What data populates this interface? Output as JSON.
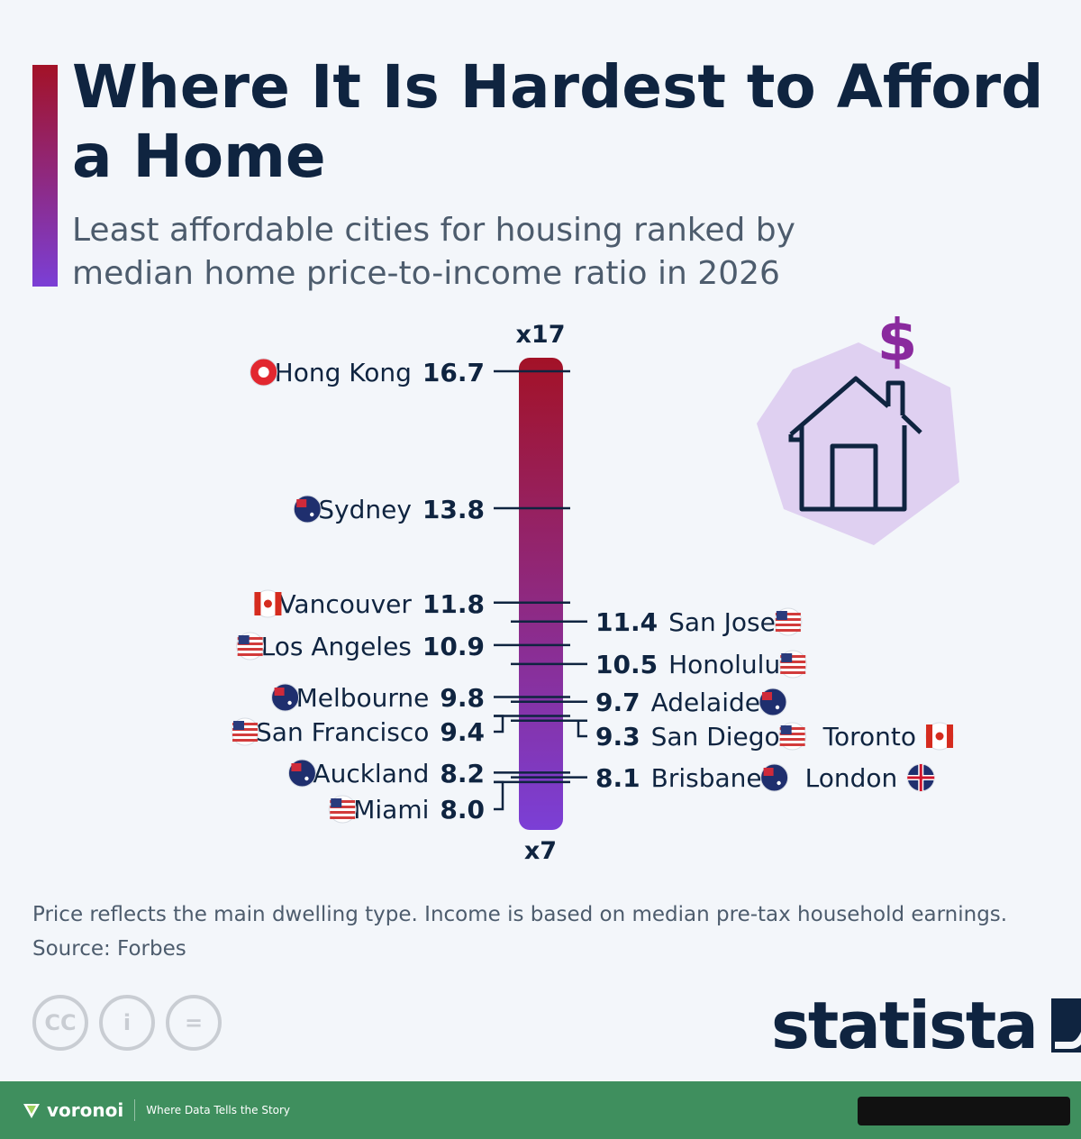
{
  "header": {
    "title": "Where It Is Hardest to Afford a Home",
    "subtitle": "Least affordable cities for housing ranked by median home price-to-income ratio in 2026"
  },
  "chart_data": {
    "type": "scatter",
    "title": "Where It Is Hardest to Afford a Home",
    "subtitle": "Least affordable cities for housing ranked by median home price-to-income ratio in 2026",
    "xlabel": "",
    "ylabel": "",
    "ylim": [
      7,
      17
    ],
    "axis_labels": {
      "top": "x17",
      "bottom": "x7"
    },
    "points": [
      {
        "city": "Hong Kong",
        "value": 16.7,
        "side": "left",
        "flag": "hong-kong"
      },
      {
        "city": "Sydney",
        "value": 13.8,
        "side": "left",
        "flag": "australia"
      },
      {
        "city": "Vancouver",
        "value": 11.8,
        "side": "left",
        "flag": "canada"
      },
      {
        "city": "San Jose",
        "value": 11.4,
        "side": "right",
        "flag": "usa"
      },
      {
        "city": "Los Angeles",
        "value": 10.9,
        "side": "left",
        "flag": "usa"
      },
      {
        "city": "Honolulu",
        "value": 10.5,
        "side": "right",
        "flag": "usa"
      },
      {
        "city": "Melbourne",
        "value": 9.8,
        "side": "left",
        "flag": "australia"
      },
      {
        "city": "Adelaide",
        "value": 9.7,
        "side": "right",
        "flag": "australia"
      },
      {
        "city": "San Francisco",
        "value": 9.4,
        "side": "left",
        "flag": "usa"
      },
      {
        "city": "San Diego",
        "value": 9.3,
        "side": "right",
        "flag": "usa",
        "also": "Toronto",
        "also_flag": "canada"
      },
      {
        "city": "Auckland",
        "value": 8.2,
        "side": "left",
        "flag": "new-zealand"
      },
      {
        "city": "Brisbane",
        "value": 8.1,
        "side": "right",
        "flag": "australia",
        "also": "London",
        "also_flag": "uk"
      },
      {
        "city": "Miami",
        "value": 8.0,
        "side": "left",
        "flag": "usa"
      }
    ],
    "gradient": {
      "top": "#a31227",
      "bottom": "#7b3fd6"
    },
    "legend": "none",
    "grid": false
  },
  "illustration": {
    "icon": "house-dollar-icon",
    "symbol": "$"
  },
  "footnote": {
    "note": "Price reflects the main dwelling type. Income is based on median pre-tax household earnings.",
    "source": "Source: Forbes"
  },
  "license_icons": {
    "cc": "CC",
    "by": "i",
    "nd": "="
  },
  "brand": {
    "name": "statista"
  },
  "footer": {
    "logo": "voronoi",
    "tagline": "Where Data Tells the Story"
  },
  "colors": {
    "title": "#0f2440",
    "subtitle": "#4d5c6d",
    "background": "#f3f6fa",
    "footer": "#3f8f5e",
    "accent_top": "#a31227",
    "accent_bottom": "#7b3fd6",
    "house_bg": "#dfd0f1",
    "dollar": "#8a2a9e"
  }
}
